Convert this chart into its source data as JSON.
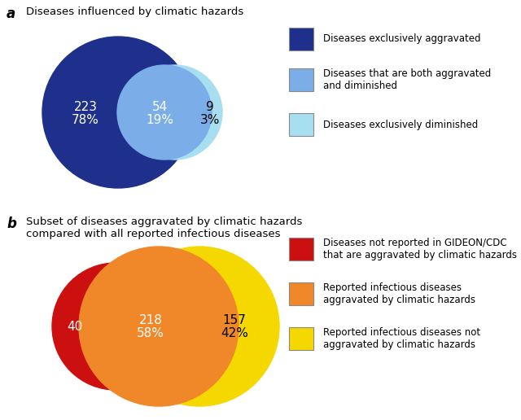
{
  "panel_a": {
    "title": "Diseases influenced by climatic hazards",
    "legend": [
      {
        "color": "#1f2f8c",
        "label": "Diseases exclusively aggravated"
      },
      {
        "color": "#7baee8",
        "label": "Diseases that are both aggravated\nand diminished"
      },
      {
        "color": "#a8dff0",
        "label": "Diseases exclusively diminished"
      }
    ]
  },
  "panel_b": {
    "title": "Subset of diseases aggravated by climatic hazards\ncompared with all reported infectious diseases",
    "legend": [
      {
        "color": "#cc1010",
        "label": "Diseases not reported in GIDEON/CDC\nthat are aggravated by climatic hazards"
      },
      {
        "color": "#f0882a",
        "label": "Reported infectious diseases\naggravated by climatic hazards"
      },
      {
        "color": "#f5d800",
        "label": "Reported infectious diseases not\naggravated by climatic hazards"
      }
    ]
  },
  "bg_color": "#ffffff"
}
